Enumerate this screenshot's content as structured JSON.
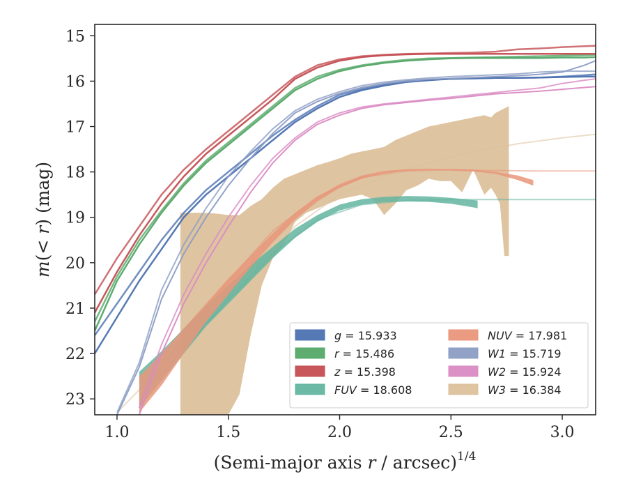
{
  "chart_data": {
    "type": "line",
    "title": "",
    "xlabel": "(Semi-major axis r / arcsec)^1/4",
    "xlabel_parts": {
      "pre": "(Semi-major axis ",
      "var": "r",
      "post": " / arcsec)",
      "sup": "1/4"
    },
    "ylabel": "m(<r) (mag)",
    "ylabel_parts": {
      "pre": "m",
      "mid": "(< ",
      "var": "r",
      "post": ") (mag)"
    },
    "xlim": [
      0.9,
      3.15
    ],
    "ylim": [
      23.35,
      14.75
    ],
    "y_inverted": true,
    "grid": false,
    "legend_placement": "lower-right",
    "xticks": [
      1.0,
      1.5,
      2.0,
      2.5,
      3.0
    ],
    "xtick_labels": [
      "1.0",
      "1.5",
      "2.0",
      "2.5",
      "3.0"
    ],
    "yticks": [
      15,
      16,
      17,
      18,
      19,
      20,
      21,
      22,
      23
    ],
    "ytick_labels": [
      "15",
      "16",
      "17",
      "18",
      "19",
      "20",
      "21",
      "22",
      "23"
    ],
    "series": [
      {
        "name": "g",
        "legend_label": "g = 15.933",
        "band_id": "g",
        "color": "#4c72b0",
        "x": [
          0.9,
          1.0,
          1.1,
          1.2,
          1.3,
          1.4,
          1.5,
          1.6,
          1.7,
          1.8,
          1.9,
          2.0,
          2.1,
          2.2,
          2.3,
          2.4,
          2.5,
          2.6,
          2.7,
          2.8,
          2.9,
          3.0,
          3.1,
          3.15
        ],
        "y_lower": [
          22.0,
          21.2,
          20.4,
          19.7,
          19.0,
          18.5,
          18.1,
          17.7,
          17.3,
          16.9,
          16.6,
          16.35,
          16.2,
          16.1,
          16.02,
          15.98,
          15.95,
          15.94,
          15.93,
          15.93,
          15.92,
          15.91,
          15.9,
          15.9
        ],
        "y_upper": [
          21.6,
          20.9,
          20.2,
          19.5,
          18.9,
          18.4,
          18.0,
          17.6,
          17.2,
          16.85,
          16.55,
          16.3,
          16.17,
          16.07,
          16.0,
          15.97,
          15.95,
          15.94,
          15.93,
          15.93,
          15.92,
          15.9,
          15.87,
          15.85
        ],
        "line_width": 2.5
      },
      {
        "name": "r",
        "legend_label": "r = 15.486",
        "band_id": "r",
        "color": "#55a868",
        "x": [
          0.9,
          1.0,
          1.1,
          1.2,
          1.3,
          1.4,
          1.5,
          1.6,
          1.7,
          1.8,
          1.9,
          2.0,
          2.1,
          2.2,
          2.3,
          2.4,
          2.5,
          2.6,
          2.7,
          2.8,
          2.9,
          3.0,
          3.1,
          3.15
        ],
        "y_lower": [
          21.5,
          20.4,
          19.6,
          18.9,
          18.3,
          17.8,
          17.4,
          17.0,
          16.6,
          16.2,
          15.95,
          15.78,
          15.67,
          15.6,
          15.55,
          15.52,
          15.5,
          15.49,
          15.49,
          15.49,
          15.49,
          15.48,
          15.48,
          15.47
        ],
        "y_upper": [
          21.3,
          20.3,
          19.5,
          18.85,
          18.25,
          17.75,
          17.35,
          16.95,
          16.55,
          16.15,
          15.9,
          15.75,
          15.65,
          15.58,
          15.53,
          15.5,
          15.49,
          15.48,
          15.47,
          15.46,
          15.45,
          15.44,
          15.43,
          15.42
        ],
        "line_width": 2.5
      },
      {
        "name": "z",
        "legend_label": "z = 15.398",
        "band_id": "z",
        "color": "#c44e52",
        "x": [
          0.9,
          1.0,
          1.1,
          1.2,
          1.3,
          1.4,
          1.5,
          1.6,
          1.7,
          1.8,
          1.9,
          2.0,
          2.1,
          2.2,
          2.3,
          2.4,
          2.5,
          2.6,
          2.7,
          2.8,
          2.9,
          3.0,
          3.1,
          3.15
        ],
        "y_lower": [
          21.1,
          20.2,
          19.4,
          18.7,
          18.1,
          17.6,
          17.2,
          16.8,
          16.4,
          15.95,
          15.7,
          15.55,
          15.47,
          15.43,
          15.41,
          15.4,
          15.4,
          15.4,
          15.4,
          15.4,
          15.4,
          15.4,
          15.4,
          15.4
        ],
        "y_upper": [
          20.7,
          19.9,
          19.2,
          18.5,
          17.95,
          17.5,
          17.1,
          16.7,
          16.3,
          15.9,
          15.65,
          15.52,
          15.45,
          15.42,
          15.4,
          15.39,
          15.38,
          15.37,
          15.35,
          15.3,
          15.28,
          15.25,
          15.23,
          15.22
        ],
        "line_width": 2.5
      },
      {
        "name": "FUV",
        "legend_label": "FUV = 18.608",
        "band_id": "FUV",
        "color": "#64b5a0",
        "x": [
          1.1,
          1.2,
          1.3,
          1.4,
          1.5,
          1.6,
          1.7,
          1.8,
          1.9,
          2.0,
          2.1,
          2.2,
          2.3,
          2.4,
          2.5,
          2.6,
          2.62
        ],
        "y_lower": [
          23.2,
          22.6,
          22.0,
          21.4,
          20.9,
          20.4,
          19.9,
          19.45,
          19.1,
          18.85,
          18.72,
          18.66,
          18.65,
          18.66,
          18.7,
          18.78,
          18.8
        ],
        "y_upper": [
          22.4,
          21.95,
          21.45,
          20.95,
          20.5,
          20.05,
          19.65,
          19.25,
          18.95,
          18.72,
          18.6,
          18.55,
          18.53,
          18.54,
          18.57,
          18.62,
          18.63
        ],
        "model_x": [
          1.1,
          1.3,
          1.5,
          1.7,
          1.9,
          2.1,
          2.3,
          2.5,
          2.7,
          2.9,
          3.15
        ],
        "model_y": [
          23.0,
          21.9,
          20.8,
          19.8,
          19.05,
          18.72,
          18.63,
          18.61,
          18.61,
          18.61,
          18.61
        ],
        "line_width": 2.5
      },
      {
        "name": "NUV",
        "legend_label": "NUV = 17.981",
        "band_id": "NUV",
        "color": "#e9967a",
        "x": [
          1.1,
          1.2,
          1.3,
          1.4,
          1.5,
          1.6,
          1.7,
          1.8,
          1.9,
          2.0,
          2.1,
          2.2,
          2.3,
          2.4,
          2.5,
          2.6,
          2.7,
          2.8,
          2.87
        ],
        "y_lower": [
          23.3,
          22.7,
          22.0,
          21.3,
          20.7,
          20.1,
          19.55,
          19.05,
          18.65,
          18.35,
          18.15,
          18.03,
          17.98,
          17.96,
          17.97,
          17.99,
          18.04,
          18.18,
          18.3
        ],
        "y_upper": [
          22.5,
          22.0,
          21.45,
          20.9,
          20.35,
          19.85,
          19.35,
          18.9,
          18.55,
          18.27,
          18.08,
          17.98,
          17.94,
          17.93,
          17.94,
          17.95,
          18.0,
          18.08,
          18.18
        ],
        "model_x": [
          1.1,
          1.3,
          1.5,
          1.7,
          1.9,
          2.1,
          2.3,
          2.5,
          2.7,
          2.9,
          3.15
        ],
        "model_y": [
          23.1,
          21.6,
          20.4,
          19.3,
          18.55,
          18.12,
          17.98,
          17.95,
          17.97,
          17.98,
          17.98
        ],
        "line_width": 2.5
      },
      {
        "name": "W1",
        "legend_label": "W1 = 15.719",
        "band_id": "W1",
        "color": "#8c9dc4",
        "x": [
          1.0,
          1.1,
          1.2,
          1.3,
          1.4,
          1.5,
          1.6,
          1.7,
          1.8,
          1.9,
          2.0,
          2.1,
          2.2,
          2.3,
          2.4,
          2.5,
          2.6,
          2.7,
          2.8,
          2.9,
          3.0,
          3.1,
          3.15
        ],
        "y_lower": [
          23.35,
          22.3,
          20.8,
          19.8,
          19.0,
          18.3,
          17.7,
          17.15,
          16.7,
          16.45,
          16.27,
          16.14,
          16.05,
          16.0,
          15.96,
          15.94,
          15.92,
          15.9,
          15.88,
          15.85,
          15.8,
          15.65,
          15.55
        ],
        "y_upper": [
          23.3,
          22.2,
          20.6,
          19.6,
          18.8,
          18.1,
          17.55,
          17.05,
          16.65,
          16.4,
          16.23,
          16.1,
          16.02,
          15.97,
          15.93,
          15.9,
          15.88,
          15.86,
          15.84,
          15.8,
          15.78,
          15.78,
          15.78
        ],
        "line_width": 2.0
      },
      {
        "name": "W2",
        "legend_label": "W2 = 15.924",
        "band_id": "W2",
        "color": "#da8bc3",
        "x": [
          1.1,
          1.2,
          1.3,
          1.4,
          1.5,
          1.6,
          1.7,
          1.8,
          1.9,
          2.0,
          2.1,
          2.2,
          2.3,
          2.4,
          2.5,
          2.6,
          2.7,
          2.8,
          2.9,
          3.0,
          3.1,
          3.15
        ],
        "y_lower": [
          23.35,
          22.0,
          20.9,
          20.0,
          19.2,
          18.45,
          17.8,
          17.3,
          16.95,
          16.75,
          16.6,
          16.52,
          16.47,
          16.42,
          16.38,
          16.33,
          16.28,
          16.25,
          16.22,
          16.18,
          16.14,
          16.12
        ],
        "y_upper": [
          23.2,
          21.8,
          20.7,
          19.8,
          19.0,
          18.3,
          17.7,
          17.25,
          16.9,
          16.7,
          16.57,
          16.5,
          16.45,
          16.4,
          16.35,
          16.3,
          16.25,
          16.2,
          16.15,
          16.05,
          15.98,
          15.95
        ],
        "line_width": 2.0
      },
      {
        "name": "W3",
        "legend_label": "W3 = 16.384",
        "band_id": "W3",
        "color": "#dcc19c",
        "band_x": [
          1.285,
          1.29,
          1.35,
          1.4,
          1.45,
          1.5,
          1.55,
          1.6,
          1.65,
          1.7,
          1.75,
          1.8,
          1.85,
          1.9,
          1.95,
          2.0,
          2.05,
          2.1,
          2.15,
          2.2,
          2.25,
          2.3,
          2.35,
          2.4,
          2.45,
          2.5,
          2.55,
          2.6,
          2.65,
          2.68,
          2.7,
          2.72,
          2.74,
          2.76
        ],
        "band_upper": [
          18.9,
          18.9,
          18.9,
          18.9,
          18.92,
          18.95,
          18.95,
          18.75,
          18.6,
          18.35,
          18.15,
          18.05,
          17.95,
          17.85,
          17.78,
          17.7,
          17.6,
          17.55,
          17.5,
          17.45,
          17.3,
          17.2,
          17.1,
          17.0,
          16.95,
          16.9,
          16.85,
          16.8,
          16.75,
          16.8,
          16.7,
          16.65,
          16.6,
          16.55
        ],
        "band_lower": [
          23.35,
          23.35,
          23.35,
          23.35,
          23.35,
          23.35,
          22.9,
          21.6,
          20.5,
          19.9,
          19.6,
          19.1,
          18.9,
          18.8,
          18.7,
          18.6,
          18.55,
          18.5,
          18.6,
          18.95,
          18.7,
          18.4,
          18.3,
          18.15,
          18.2,
          18.2,
          18.45,
          17.95,
          18.5,
          18.35,
          18.5,
          18.7,
          19.85,
          19.85
        ],
        "model_x": [
          1.0,
          1.2,
          1.4,
          1.6,
          1.8,
          2.0,
          2.2,
          2.4,
          2.6,
          2.8,
          3.0,
          3.15
        ],
        "model_y": [
          23.3,
          22.3,
          21.2,
          20.2,
          19.2,
          18.5,
          18.1,
          17.8,
          17.55,
          17.38,
          17.25,
          17.17
        ],
        "line_width": 2.0
      }
    ],
    "legend": {
      "columns": 2,
      "entries": [
        {
          "name": "g",
          "value_text": "15.933",
          "color": "#4c72b0"
        },
        {
          "name": "r",
          "value_text": "15.486",
          "color": "#55a868"
        },
        {
          "name": "z",
          "value_text": "15.398",
          "color": "#c44e52"
        },
        {
          "name": "FUV",
          "value_text": "18.608",
          "color": "#64b5a0"
        },
        {
          "name": "NUV",
          "value_text": "17.981",
          "color": "#e9967a"
        },
        {
          "name": "W1",
          "value_text": "15.719",
          "color": "#8c9dc4"
        },
        {
          "name": "W2",
          "value_text": "15.924",
          "color": "#da8bc3"
        },
        {
          "name": "W3",
          "value_text": "16.384",
          "color": "#dcc19c"
        }
      ]
    }
  }
}
